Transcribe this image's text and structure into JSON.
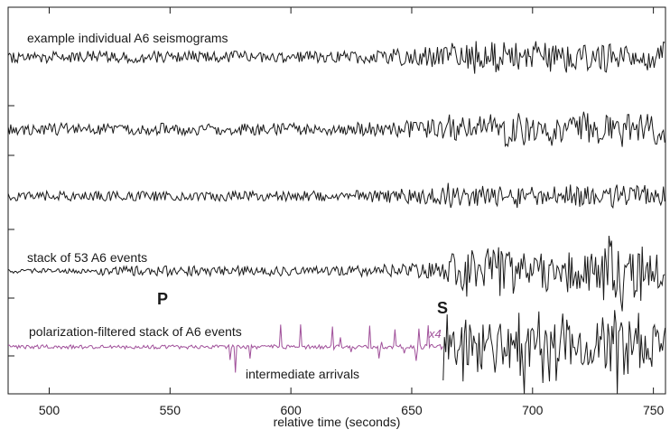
{
  "chart_data": {
    "type": "line",
    "title": "",
    "xlabel": "relative time (seconds)",
    "ylabel": "",
    "xlim": [
      483,
      755
    ],
    "x_ticks": [
      500,
      550,
      600,
      650,
      700,
      750
    ],
    "x_tick_labels": [
      "500",
      "550",
      "600",
      "650",
      "700",
      "750"
    ],
    "grid": false,
    "series": [
      {
        "name": "example individual A6 seismograms",
        "color": "#1a1a1a",
        "row": 0,
        "onset_s": 665,
        "pre_amp": 0.3,
        "post_amp": 0.75
      },
      {
        "name": "",
        "color": "#1a1a1a",
        "row": 1,
        "onset_s": 665,
        "pre_amp": 0.3,
        "post_amp": 0.75
      },
      {
        "name": "",
        "color": "#1a1a1a",
        "row": 2,
        "onset_s": 665,
        "pre_amp": 0.25,
        "post_amp": 0.55
      },
      {
        "name": "stack of 53 A6 events",
        "color": "#1a1a1a",
        "row": 3,
        "onset_s": 665,
        "pre_amp": 0.25,
        "post_amp": 1.1
      },
      {
        "name": "polarization-filtered stack of A6 events",
        "color": "#a0509a",
        "row": 4,
        "segment_end_s": 663,
        "gain_label": "x4",
        "pre_amp": 0.1,
        "post_amp": 1.8
      }
    ],
    "annotations": {
      "p_phase": "P",
      "s_phase": "S",
      "intermediate": "intermediate arrivals",
      "gain": "x4"
    }
  }
}
